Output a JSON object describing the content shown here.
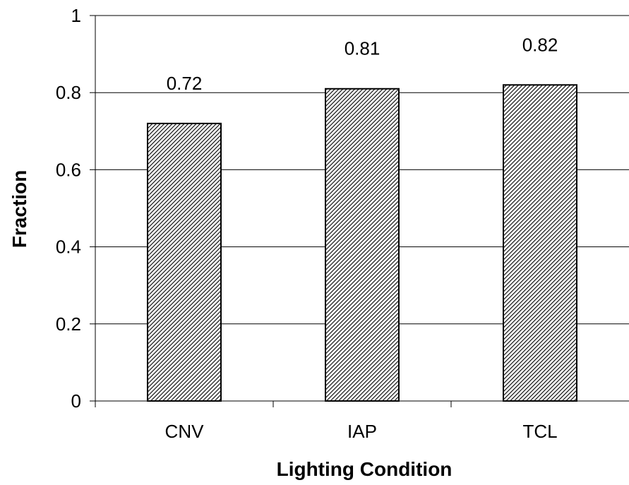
{
  "chart_data": {
    "type": "bar",
    "title": "",
    "xlabel": "Lighting Condition",
    "ylabel": "Fraction",
    "categories": [
      "CNV",
      "IAP",
      "TCL"
    ],
    "values": [
      0.72,
      0.81,
      0.82
    ],
    "data_labels": [
      "0.72",
      "0.81",
      "0.82"
    ],
    "ylim": [
      0,
      1
    ],
    "yticks": [
      0,
      0.2,
      0.4,
      0.6,
      0.8,
      1
    ],
    "ytick_labels": [
      "0",
      "0.2",
      "0.4",
      "0.6",
      "0.8",
      "1"
    ],
    "grid": true,
    "legend": "none",
    "bar_pattern": "diagonal-hatch"
  },
  "colors": {
    "bar_hatch": "#000000",
    "bar_fill": "#ffffff",
    "bar_outline": "#000000",
    "gridline": "#000000",
    "axis": "#000000",
    "text": "#000000"
  }
}
